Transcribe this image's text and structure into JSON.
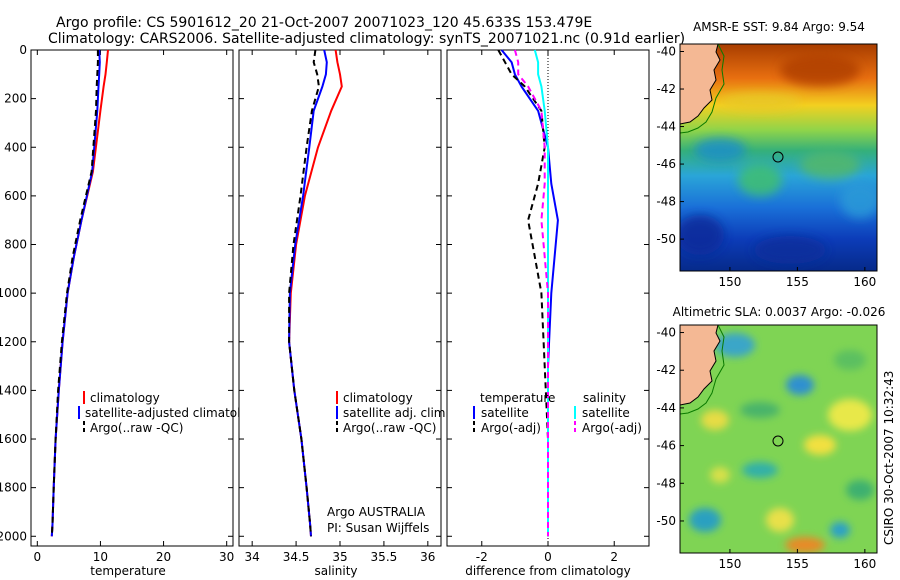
{
  "header": {
    "line1": "Argo profile: CS 5901612_20 21-Oct-2007 20071023_120 45.633S 153.479E",
    "line2": "Climatology: CARS2006. Satellite-adjusted climatology: synTS_20071021.nc (0.91d earlier)"
  },
  "colors": {
    "climatology": "#ff0000",
    "satellite": "#0000ff",
    "argo": "#000000",
    "salinity_satellite": "#00ffff",
    "salinity_argo": "#ff00ff"
  },
  "credits": {
    "line1": "Argo AUSTRALIA",
    "line2": "PI: Susan Wijffels",
    "stamp": "CSIRO 30-Oct-2007 10:32:43"
  },
  "maps": [
    {
      "title": "AMSR-E SST: 9.84 Argo: 9.54",
      "xticks": [
        "150",
        "155",
        "160"
      ],
      "yticks": [
        "-40",
        "-42",
        "-44",
        "-46",
        "-48",
        "-50"
      ]
    },
    {
      "title": "Altimetric SLA: 0.0037 Argo: -0.026",
      "xticks": [
        "150",
        "155",
        "160"
      ],
      "yticks": [
        "-40",
        "-42",
        "-44",
        "-46",
        "-48",
        "-50"
      ]
    }
  ],
  "chart_data": [
    {
      "type": "line",
      "xlabel": "temperature",
      "xlim": [
        -1,
        31
      ],
      "ylim": [
        2040,
        0
      ],
      "xticks": [
        "0",
        "10",
        "20",
        "30"
      ],
      "yticks": [
        "0",
        "200",
        "400",
        "600",
        "800",
        "1000",
        "1200",
        "1400",
        "1600",
        "1800",
        "2000"
      ],
      "legend": [
        "climatology",
        "satellite-adjusted climatology",
        "Argo(..raw -QC)"
      ],
      "series": [
        {
          "name": "climatology",
          "color": "#ff0000",
          "dash": "solid",
          "x": [
            11.2,
            11.0,
            10.8,
            10.5,
            10.0,
            8.8,
            7.0,
            5.8,
            4.8,
            4.0,
            3.4,
            2.9,
            2.6,
            2.4,
            2.3
          ],
          "y": [
            0,
            50,
            100,
            150,
            250,
            500,
            700,
            850,
            1000,
            1200,
            1400,
            1600,
            1800,
            1950,
            2000
          ]
        },
        {
          "name": "satellite-adjusted climatology",
          "color": "#0000ff",
          "dash": "solid",
          "x": [
            9.8,
            9.9,
            9.8,
            9.7,
            9.5,
            8.7,
            7.0,
            5.8,
            4.8,
            4.0,
            3.4,
            2.9,
            2.6,
            2.4,
            2.3
          ],
          "y": [
            0,
            50,
            100,
            150,
            250,
            500,
            700,
            850,
            1000,
            1200,
            1400,
            1600,
            1800,
            1950,
            2000
          ]
        },
        {
          "name": "Argo(..raw -QC)",
          "color": "#000000",
          "dash": "dashed",
          "x": [
            9.6,
            9.6,
            9.5,
            9.4,
            9.3,
            8.6,
            6.8,
            5.6,
            4.7,
            3.9,
            3.3,
            2.9,
            2.6,
            2.4,
            2.3
          ],
          "y": [
            0,
            50,
            100,
            150,
            250,
            500,
            700,
            850,
            1000,
            1200,
            1400,
            1600,
            1800,
            1950,
            2000
          ]
        }
      ]
    },
    {
      "type": "line",
      "xlabel": "salinity",
      "xlim": [
        33.85,
        36.15
      ],
      "ylim": [
        2040,
        0
      ],
      "xticks": [
        "34",
        "34.5",
        "35",
        "35.5",
        "36"
      ],
      "legend": [
        "climatology",
        "satellite adj. clim.",
        "Argo(..raw -QC)"
      ],
      "series": [
        {
          "name": "climatology",
          "color": "#ff0000",
          "dash": "solid",
          "x": [
            34.95,
            34.97,
            35.0,
            35.02,
            34.9,
            34.75,
            34.6,
            34.5,
            34.44,
            34.42,
            34.48,
            34.56,
            34.62,
            34.66,
            34.67
          ],
          "y": [
            0,
            50,
            100,
            150,
            250,
            400,
            600,
            800,
            1000,
            1200,
            1400,
            1600,
            1800,
            1950,
            2000
          ]
        },
        {
          "name": "satellite adj. clim.",
          "color": "#0000ff",
          "dash": "solid",
          "x": [
            34.82,
            34.85,
            34.84,
            34.8,
            34.7,
            34.65,
            34.58,
            34.49,
            34.43,
            34.42,
            34.48,
            34.56,
            34.62,
            34.66,
            34.67
          ],
          "y": [
            0,
            50,
            100,
            150,
            250,
            400,
            600,
            800,
            1000,
            1200,
            1400,
            1600,
            1800,
            1950,
            2000
          ]
        },
        {
          "name": "Argo(..raw -QC)",
          "color": "#000000",
          "dash": "dashed",
          "x": [
            34.72,
            34.7,
            34.74,
            34.76,
            34.68,
            34.62,
            34.55,
            34.47,
            34.42,
            34.42,
            34.48,
            34.56,
            34.62,
            34.66,
            34.67
          ],
          "y": [
            0,
            50,
            100,
            150,
            250,
            400,
            600,
            800,
            1000,
            1200,
            1400,
            1600,
            1800,
            1950,
            2000
          ]
        }
      ]
    },
    {
      "type": "line",
      "xlabel": "difference from climatology",
      "xlim": [
        -3.05,
        3.05
      ],
      "ylim": [
        2040,
        0
      ],
      "xticks": [
        "-2",
        "0",
        "2"
      ],
      "legend_groups": [
        "temperature",
        "salinity"
      ],
      "legend": [
        "satellite",
        "Argo(-adj)",
        "satellite",
        "Argo(-adj)"
      ],
      "series": [
        {
          "name": "satellite",
          "group": "temperature",
          "color": "#0000ff",
          "dash": "solid",
          "x": [
            -1.4,
            -1.1,
            -1.0,
            -0.8,
            -0.3,
            0.0,
            0.1,
            0.3,
            0.2,
            0.1,
            0.0,
            0.0,
            0.0,
            0.0
          ],
          "y": [
            0,
            50,
            100,
            150,
            250,
            400,
            550,
            700,
            850,
            1000,
            1300,
            1600,
            1800,
            2000
          ]
        },
        {
          "name": "Argo(-adj)",
          "group": "temperature",
          "color": "#000000",
          "dash": "dashed",
          "x": [
            -1.5,
            -1.3,
            -1.1,
            -0.7,
            -0.2,
            -0.1,
            -0.3,
            -0.6,
            -0.4,
            -0.2,
            -0.1,
            0.0,
            0.0,
            0.0
          ],
          "y": [
            0,
            50,
            100,
            150,
            250,
            400,
            550,
            700,
            850,
            1000,
            1300,
            1600,
            1800,
            2000
          ]
        },
        {
          "name": "satellite",
          "group": "salinity",
          "color": "#00ffff",
          "dash": "solid",
          "x": [
            -0.4,
            -0.3,
            -0.3,
            -0.2,
            -0.1,
            0.0,
            0.0,
            0.0,
            0.0,
            0.0,
            0.0,
            0.0,
            0.0,
            0.0
          ],
          "y": [
            0,
            50,
            100,
            150,
            250,
            400,
            550,
            700,
            850,
            1000,
            1300,
            1600,
            1800,
            2000
          ]
        },
        {
          "name": "Argo(-adj)",
          "group": "salinity",
          "color": "#ff00ff",
          "dash": "dashed",
          "x": [
            -1.0,
            -0.9,
            -0.9,
            -0.6,
            -0.2,
            -0.1,
            -0.1,
            -0.2,
            -0.1,
            0.0,
            0.0,
            0.0,
            0.0,
            0.0
          ],
          "y": [
            0,
            50,
            100,
            150,
            250,
            400,
            550,
            700,
            850,
            1000,
            1300,
            1600,
            1800,
            2000
          ]
        }
      ]
    }
  ]
}
